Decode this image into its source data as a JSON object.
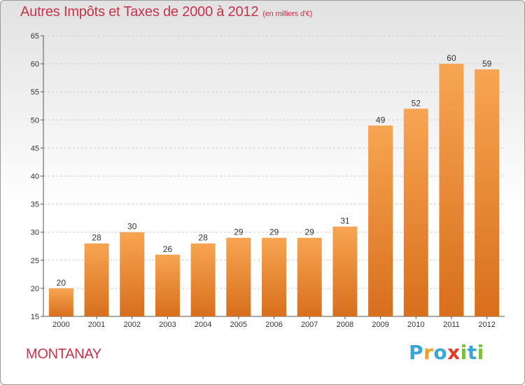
{
  "header": {
    "title": "Autres Impôts et Taxes de 2000 à 2012",
    "unit": "(en milliers d'€)"
  },
  "footer": {
    "town": "MONTANAY",
    "logo": {
      "letters": [
        "P",
        "r",
        "o",
        "x",
        "i",
        "t",
        "i"
      ],
      "colors": [
        "#3aa6d8",
        "#f0a020",
        "#3aa6d8",
        "#e83a2a",
        "#7cbf3a",
        "#3aa6d8",
        "#7cbf3a"
      ]
    }
  },
  "colors": {
    "title": "#c8334a",
    "bar_light": "#f7a552",
    "bar_dark": "#d86f1c",
    "grid": "#cccccc"
  },
  "chart_data": {
    "type": "bar",
    "categories": [
      "2000",
      "2001",
      "2002",
      "2003",
      "2004",
      "2005",
      "2006",
      "2007",
      "2008",
      "2009",
      "2010",
      "2011",
      "2012"
    ],
    "values": [
      20,
      28,
      30,
      26,
      28,
      29,
      29,
      29,
      31,
      49,
      52,
      60,
      59
    ],
    "title": "Autres Impôts et Taxes de 2000 à 2012",
    "subtitle": "(en milliers d'€)",
    "xlabel": "",
    "ylabel": "",
    "ylim": [
      15,
      65
    ],
    "yticks": [
      15,
      20,
      25,
      30,
      35,
      40,
      45,
      50,
      55,
      60,
      65
    ],
    "grid": true,
    "data_labels": true
  }
}
